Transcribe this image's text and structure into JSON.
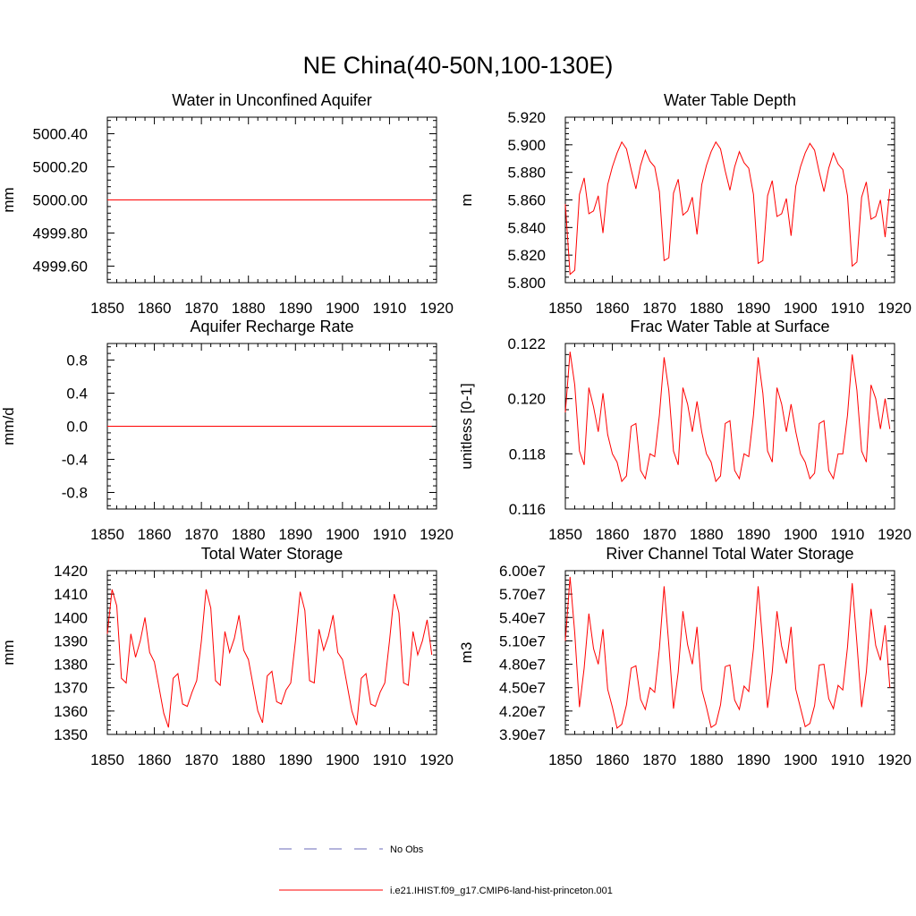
{
  "figure": {
    "title": "NE China(40-50N,100-130E)",
    "legend": [
      {
        "label": "No Obs",
        "color": "#6a6ab8",
        "style": "dashed"
      },
      {
        "label": "i.e21.IHIST.f09_g17.CMIP6-land-hist-princeton.001",
        "color": "#ff0000",
        "style": "solid"
      }
    ]
  },
  "chart_data": [
    {
      "type": "line",
      "title": "Water in Unconfined Aquifer",
      "ylabel": "mm",
      "xlim": [
        1850,
        1920
      ],
      "x_ticks": [
        1850,
        1860,
        1870,
        1880,
        1890,
        1900,
        1910,
        1920
      ],
      "x_tick_labels": [
        "1850",
        "1860",
        "1870",
        "1880",
        "1890",
        "1900",
        "1910",
        "1920"
      ],
      "ylim": [
        4999.5,
        5000.5
      ],
      "y_ticks": [
        4999.6,
        4999.8,
        5000.0,
        5000.2,
        5000.4
      ],
      "y_tick_labels": [
        "4999.60",
        "4999.80",
        "5000.00",
        "5000.20",
        "5000.40"
      ],
      "series": [
        {
          "color": "#ff0000",
          "x_start": 1850,
          "x_step": 1,
          "values": [
            5000,
            5000,
            5000,
            5000,
            5000,
            5000,
            5000,
            5000,
            5000,
            5000,
            5000,
            5000,
            5000,
            5000,
            5000,
            5000,
            5000,
            5000,
            5000,
            5000,
            5000,
            5000,
            5000,
            5000,
            5000,
            5000,
            5000,
            5000,
            5000,
            5000,
            5000,
            5000,
            5000,
            5000,
            5000,
            5000,
            5000,
            5000,
            5000,
            5000,
            5000,
            5000,
            5000,
            5000,
            5000,
            5000,
            5000,
            5000,
            5000,
            5000,
            5000,
            5000,
            5000,
            5000,
            5000,
            5000,
            5000,
            5000,
            5000,
            5000,
            5000,
            5000,
            5000,
            5000,
            5000,
            5000,
            5000,
            5000,
            5000,
            5000
          ]
        }
      ]
    },
    {
      "type": "line",
      "title": "Water Table Depth",
      "ylabel": "m",
      "xlim": [
        1850,
        1920
      ],
      "x_ticks": [
        1850,
        1860,
        1870,
        1880,
        1890,
        1900,
        1910,
        1920
      ],
      "x_tick_labels": [
        "1850",
        "1860",
        "1870",
        "1880",
        "1890",
        "1900",
        "1910",
        "1920"
      ],
      "ylim": [
        5.8,
        5.92
      ],
      "y_ticks": [
        5.8,
        5.82,
        5.84,
        5.86,
        5.88,
        5.9,
        5.92
      ],
      "y_tick_labels": [
        "5.800",
        "5.820",
        "5.840",
        "5.860",
        "5.880",
        "5.900",
        "5.920"
      ],
      "series": [
        {
          "color": "#ff0000",
          "x_start": 1850,
          "x_step": 1,
          "values": [
            5.857,
            5.806,
            5.809,
            5.864,
            5.876,
            5.85,
            5.852,
            5.863,
            5.836,
            5.871,
            5.884,
            5.894,
            5.902,
            5.897,
            5.882,
            5.868,
            5.885,
            5.896,
            5.888,
            5.884,
            5.866,
            5.816,
            5.818,
            5.865,
            5.875,
            5.849,
            5.852,
            5.862,
            5.835,
            5.871,
            5.885,
            5.895,
            5.902,
            5.897,
            5.881,
            5.867,
            5.884,
            5.895,
            5.887,
            5.883,
            5.864,
            5.814,
            5.816,
            5.863,
            5.874,
            5.848,
            5.85,
            5.861,
            5.834,
            5.87,
            5.884,
            5.894,
            5.901,
            5.896,
            5.88,
            5.866,
            5.883,
            5.894,
            5.886,
            5.882,
            5.863,
            5.812,
            5.815,
            5.862,
            5.873,
            5.846,
            5.848,
            5.86,
            5.833,
            5.868
          ]
        }
      ]
    },
    {
      "type": "line",
      "title": "Aquifer Recharge Rate",
      "ylabel": "mm/d",
      "xlim": [
        1850,
        1920
      ],
      "x_ticks": [
        1850,
        1860,
        1870,
        1880,
        1890,
        1900,
        1910,
        1920
      ],
      "x_tick_labels": [
        "1850",
        "1860",
        "1870",
        "1880",
        "1890",
        "1900",
        "1910",
        "1920"
      ],
      "ylim": [
        -1.0,
        1.0
      ],
      "y_ticks": [
        -0.8,
        -0.4,
        0.0,
        0.4,
        0.8
      ],
      "y_tick_labels": [
        "-0.8",
        "-0.4",
        "0.0",
        "0.4",
        "0.8"
      ],
      "series": [
        {
          "color": "#ff0000",
          "x_start": 1850,
          "x_step": 1,
          "values": [
            0,
            0,
            0,
            0,
            0,
            0,
            0,
            0,
            0,
            0,
            0,
            0,
            0,
            0,
            0,
            0,
            0,
            0,
            0,
            0,
            0,
            0,
            0,
            0,
            0,
            0,
            0,
            0,
            0,
            0,
            0,
            0,
            0,
            0,
            0,
            0,
            0,
            0,
            0,
            0,
            0,
            0,
            0,
            0,
            0,
            0,
            0,
            0,
            0,
            0,
            0,
            0,
            0,
            0,
            0,
            0,
            0,
            0,
            0,
            0,
            0,
            0,
            0,
            0,
            0,
            0,
            0,
            0,
            0,
            0
          ]
        }
      ]
    },
    {
      "type": "line",
      "title": "Frac Water Table at Surface",
      "ylabel": "unitless [0-1]",
      "xlim": [
        1850,
        1920
      ],
      "x_ticks": [
        1850,
        1860,
        1870,
        1880,
        1890,
        1900,
        1910,
        1920
      ],
      "x_tick_labels": [
        "1850",
        "1860",
        "1870",
        "1880",
        "1890",
        "1900",
        "1910",
        "1920"
      ],
      "ylim": [
        0.116,
        0.122
      ],
      "y_ticks": [
        0.116,
        0.118,
        0.12,
        0.122
      ],
      "y_tick_labels": [
        "0.116",
        "0.118",
        "0.120",
        "0.122"
      ],
      "series": [
        {
          "color": "#ff0000",
          "x_start": 1850,
          "x_step": 1,
          "values": [
            0.1195,
            0.1217,
            0.1205,
            0.1181,
            0.1176,
            0.1204,
            0.1197,
            0.1188,
            0.1202,
            0.1187,
            0.118,
            0.1177,
            0.117,
            0.1172,
            0.119,
            0.1191,
            0.1174,
            0.1171,
            0.118,
            0.1179,
            0.1194,
            0.1215,
            0.1203,
            0.1181,
            0.1176,
            0.1204,
            0.1198,
            0.1188,
            0.1199,
            0.1188,
            0.118,
            0.1177,
            0.117,
            0.1172,
            0.1191,
            0.1192,
            0.1174,
            0.1171,
            0.118,
            0.1179,
            0.1194,
            0.1215,
            0.1202,
            0.1181,
            0.1177,
            0.1204,
            0.1198,
            0.1188,
            0.1198,
            0.1188,
            0.118,
            0.1177,
            0.1171,
            0.1173,
            0.1191,
            0.1192,
            0.1174,
            0.1171,
            0.118,
            0.118,
            0.1194,
            0.1216,
            0.1203,
            0.1181,
            0.1177,
            0.1205,
            0.12,
            0.1189,
            0.12,
            0.1189
          ]
        }
      ]
    },
    {
      "type": "line",
      "title": "Total Water Storage",
      "ylabel": "mm",
      "xlim": [
        1850,
        1920
      ],
      "x_ticks": [
        1850,
        1860,
        1870,
        1880,
        1890,
        1900,
        1910,
        1920
      ],
      "x_tick_labels": [
        "1850",
        "1860",
        "1870",
        "1880",
        "1890",
        "1900",
        "1910",
        "1920"
      ],
      "ylim": [
        1350,
        1420
      ],
      "y_ticks": [
        1350,
        1360,
        1370,
        1380,
        1390,
        1400,
        1410,
        1420
      ],
      "y_tick_labels": [
        "1350",
        "1360",
        "1370",
        "1380",
        "1390",
        "1400",
        "1410",
        "1420"
      ],
      "series": [
        {
          "color": "#ff0000",
          "x_start": 1850,
          "x_step": 1,
          "values": [
            1393,
            1412,
            1405,
            1374,
            1372,
            1393,
            1383,
            1390,
            1400,
            1385,
            1381,
            1370,
            1359,
            1353,
            1374,
            1376,
            1363,
            1362,
            1368,
            1373,
            1390,
            1412,
            1404,
            1373,
            1371,
            1394,
            1385,
            1391,
            1401,
            1386,
            1382,
            1371,
            1360,
            1355,
            1375,
            1377,
            1364,
            1363,
            1369,
            1372,
            1390,
            1411,
            1403,
            1373,
            1372,
            1395,
            1386,
            1392,
            1401,
            1385,
            1382,
            1371,
            1360,
            1354,
            1374,
            1376,
            1363,
            1362,
            1368,
            1372,
            1390,
            1410,
            1402,
            1372,
            1371,
            1394,
            1384,
            1390,
            1399,
            1384
          ]
        }
      ]
    },
    {
      "type": "line",
      "title": "River Channel Total Water Storage",
      "ylabel": "m3",
      "xlim": [
        1850,
        1920
      ],
      "x_ticks": [
        1850,
        1860,
        1870,
        1880,
        1890,
        1900,
        1910,
        1920
      ],
      "x_tick_labels": [
        "1850",
        "1860",
        "1870",
        "1880",
        "1890",
        "1900",
        "1910",
        "1920"
      ],
      "ylim": [
        39000000,
        60000000
      ],
      "y_ticks": [
        39000000,
        42000000,
        45000000,
        48000000,
        51000000,
        54000000,
        57000000,
        60000000
      ],
      "y_tick_labels": [
        "3.90e7",
        "4.20e7",
        "4.50e7",
        "4.80e7",
        "5.10e7",
        "5.40e7",
        "5.70e7",
        "6.00e7"
      ],
      "series": [
        {
          "color": "#ff0000",
          "x_start": 1850,
          "x_step": 1,
          "values": [
            51000000,
            59200000,
            52000000,
            42500000,
            47500000,
            54500000,
            50000000,
            48000000,
            52500000,
            44800000,
            42500000,
            39800000,
            40300000,
            42800000,
            47500000,
            47800000,
            43500000,
            42200000,
            45000000,
            44400000,
            50000000,
            58000000,
            50500000,
            42300000,
            47000000,
            54800000,
            50500000,
            48000000,
            52800000,
            44800000,
            42500000,
            39900000,
            40300000,
            42800000,
            47700000,
            47900000,
            43400000,
            42200000,
            45200000,
            44500000,
            50000000,
            58000000,
            50500000,
            42400000,
            47000000,
            54800000,
            50300000,
            48100000,
            52800000,
            44800000,
            42400000,
            40000000,
            40400000,
            42700000,
            47900000,
            48000000,
            43600000,
            42300000,
            45300000,
            44700000,
            50200000,
            58400000,
            50700000,
            42500000,
            47000000,
            55100000,
            50400000,
            48500000,
            53000000,
            45000000
          ]
        }
      ]
    }
  ]
}
